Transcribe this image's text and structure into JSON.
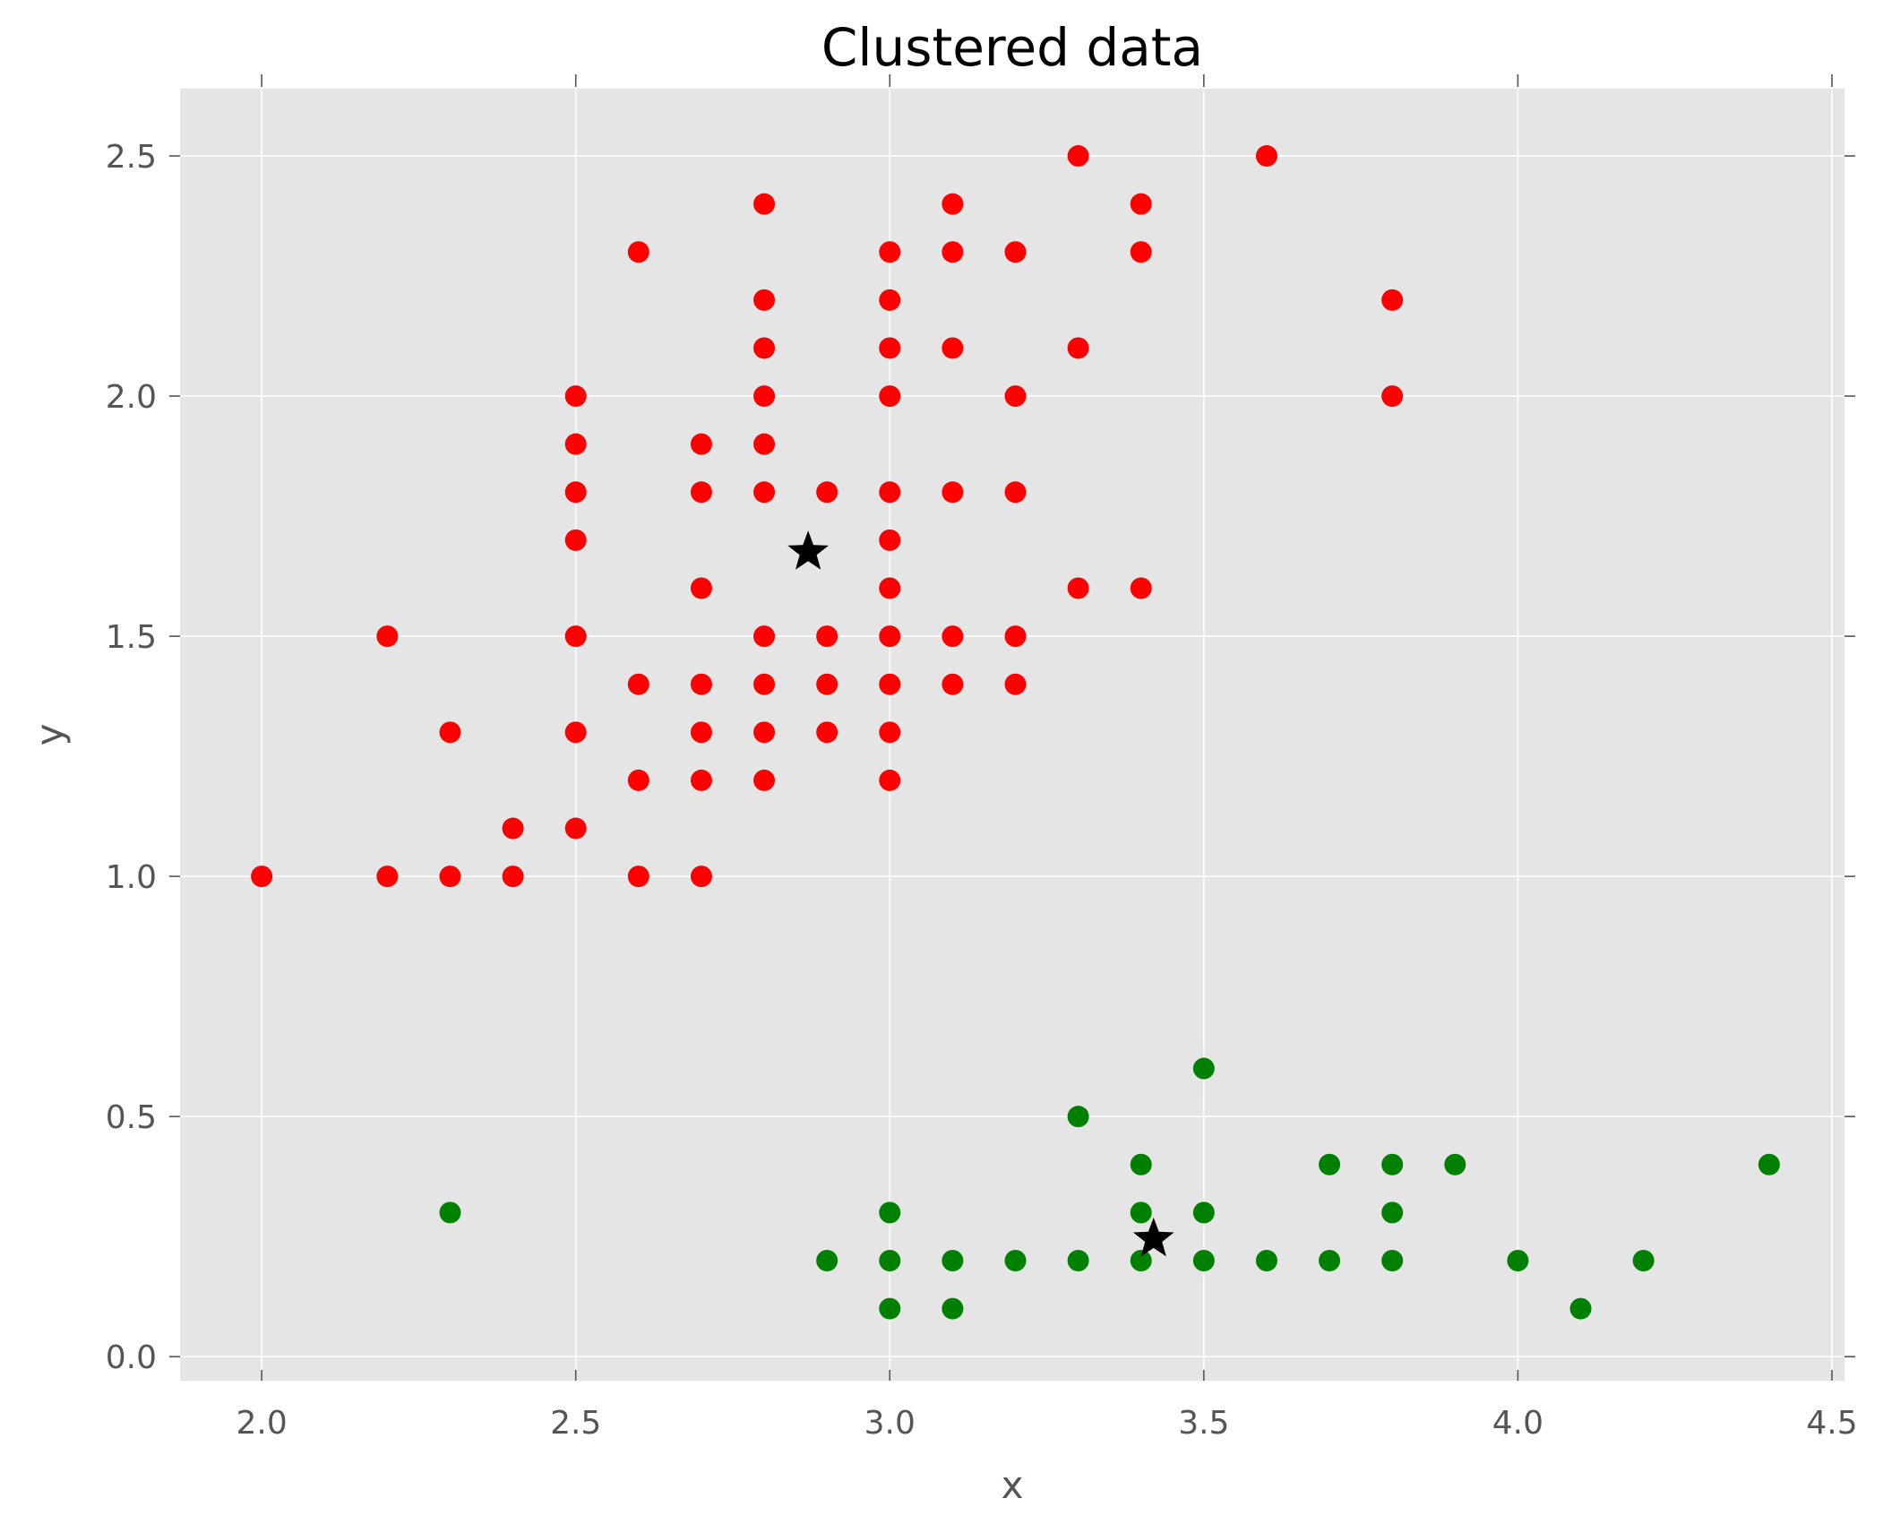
{
  "colors": {
    "background": "#ffffff",
    "plot_background": "#e5e5e5",
    "grid": "#ffffff",
    "ticks": "#555555",
    "cluster_1": "#ff0000",
    "cluster_2": "#008000",
    "centroid": "#000000"
  },
  "chart_data": {
    "type": "scatter",
    "title": "Clustered data",
    "xlabel": "x",
    "ylabel": "y",
    "xlim": [
      1.87,
      4.52
    ],
    "ylim": [
      -0.05,
      2.64
    ],
    "grid": true,
    "x_ticks": [
      2.0,
      2.5,
      3.0,
      3.5,
      4.0,
      4.5
    ],
    "x_tick_labels": [
      "2.0",
      "2.5",
      "3.0",
      "3.5",
      "4.0",
      "4.5"
    ],
    "y_ticks": [
      0.0,
      0.5,
      1.0,
      1.5,
      2.0,
      2.5
    ],
    "y_tick_labels": [
      "0.0",
      "0.5",
      "1.0",
      "1.5",
      "2.0",
      "2.5"
    ],
    "series": [
      {
        "color": "#ff0000",
        "marker": "circle",
        "points": [
          [
            2.8,
            2.4
          ],
          [
            3.1,
            2.4
          ],
          [
            3.4,
            2.4
          ],
          [
            2.6,
            2.3
          ],
          [
            3.0,
            2.3
          ],
          [
            3.1,
            2.3
          ],
          [
            3.2,
            2.3
          ],
          [
            3.4,
            2.3
          ],
          [
            2.8,
            2.2
          ],
          [
            3.0,
            2.2
          ],
          [
            3.8,
            2.2
          ],
          [
            2.8,
            2.1
          ],
          [
            3.0,
            2.1
          ],
          [
            3.1,
            2.1
          ],
          [
            3.3,
            2.1
          ],
          [
            2.5,
            2.0
          ],
          [
            2.8,
            2.0
          ],
          [
            3.0,
            2.0
          ],
          [
            3.2,
            2.0
          ],
          [
            3.8,
            2.0
          ],
          [
            2.5,
            1.9
          ],
          [
            2.7,
            1.9
          ],
          [
            2.8,
            1.9
          ],
          [
            2.5,
            1.8
          ],
          [
            2.7,
            1.8
          ],
          [
            2.8,
            1.8
          ],
          [
            2.9,
            1.8
          ],
          [
            3.0,
            1.8
          ],
          [
            3.1,
            1.8
          ],
          [
            3.2,
            1.8
          ],
          [
            2.5,
            1.7
          ],
          [
            3.0,
            1.7
          ],
          [
            2.7,
            1.6
          ],
          [
            3.0,
            1.6
          ],
          [
            3.3,
            1.6
          ],
          [
            3.4,
            1.6
          ],
          [
            2.2,
            1.5
          ],
          [
            2.5,
            1.5
          ],
          [
            2.8,
            1.5
          ],
          [
            2.9,
            1.5
          ],
          [
            3.0,
            1.5
          ],
          [
            3.1,
            1.5
          ],
          [
            3.2,
            1.5
          ],
          [
            2.6,
            1.4
          ],
          [
            2.7,
            1.4
          ],
          [
            2.8,
            1.4
          ],
          [
            2.9,
            1.4
          ],
          [
            3.0,
            1.4
          ],
          [
            3.1,
            1.4
          ],
          [
            3.2,
            1.4
          ],
          [
            2.3,
            1.3
          ],
          [
            2.5,
            1.3
          ],
          [
            2.7,
            1.3
          ],
          [
            2.8,
            1.3
          ],
          [
            2.9,
            1.3
          ],
          [
            3.0,
            1.3
          ],
          [
            2.6,
            1.2
          ],
          [
            2.7,
            1.2
          ],
          [
            2.8,
            1.2
          ],
          [
            3.0,
            1.2
          ],
          [
            2.4,
            1.1
          ],
          [
            2.5,
            1.1
          ],
          [
            2.0,
            1.0
          ],
          [
            2.2,
            1.0
          ],
          [
            2.3,
            1.0
          ],
          [
            2.4,
            1.0
          ],
          [
            2.6,
            1.0
          ],
          [
            2.7,
            1.0
          ],
          [
            3.3,
            2.5
          ],
          [
            3.6,
            2.5
          ]
        ]
      },
      {
        "color": "#008000",
        "marker": "circle",
        "points": [
          [
            3.5,
            0.6
          ],
          [
            3.3,
            0.5
          ],
          [
            3.4,
            0.4
          ],
          [
            3.7,
            0.4
          ],
          [
            3.8,
            0.4
          ],
          [
            3.9,
            0.4
          ],
          [
            4.4,
            0.4
          ],
          [
            2.3,
            0.3
          ],
          [
            3.0,
            0.3
          ],
          [
            3.4,
            0.3
          ],
          [
            3.5,
            0.3
          ],
          [
            3.8,
            0.3
          ],
          [
            2.9,
            0.2
          ],
          [
            3.0,
            0.2
          ],
          [
            3.1,
            0.2
          ],
          [
            3.2,
            0.2
          ],
          [
            3.3,
            0.2
          ],
          [
            3.4,
            0.2
          ],
          [
            3.5,
            0.2
          ],
          [
            3.6,
            0.2
          ],
          [
            3.7,
            0.2
          ],
          [
            3.8,
            0.2
          ],
          [
            4.0,
            0.2
          ],
          [
            4.2,
            0.2
          ],
          [
            3.0,
            0.1
          ],
          [
            3.1,
            0.1
          ],
          [
            4.1,
            0.1
          ]
        ]
      },
      {
        "color": "#000000",
        "marker": "star",
        "points": [
          [
            2.87,
            1.675
          ],
          [
            3.42,
            0.245
          ]
        ]
      }
    ]
  }
}
